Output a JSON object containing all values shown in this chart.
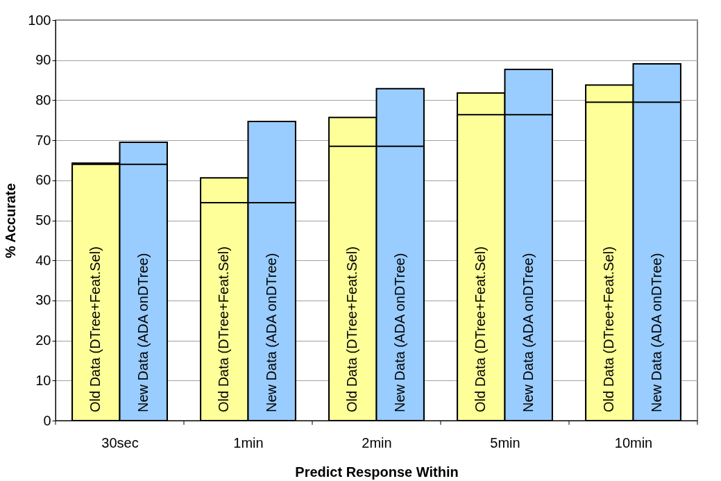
{
  "chart_data": {
    "type": "bar",
    "xlabel": "Predict Response Within",
    "ylabel": "% Accurate",
    "categories": [
      "30sec",
      "1min",
      "2min",
      "5min",
      "10min"
    ],
    "series": [
      {
        "name": "Old Data (DTree+Feat.Sel)",
        "color": "#ffff99",
        "values": [
          64.3,
          60.6,
          75.7,
          81.8,
          83.8
        ]
      },
      {
        "name": "New Data (ADA onDTree)",
        "color": "#99ccff",
        "values": [
          69.5,
          74.7,
          82.9,
          87.7,
          89.1
        ]
      },
      {
        "type": "bar",
        "values": [
          64.0,
          54.4,
          68.5,
          76.4,
          79.5
        ]
      }
    ],
    "ylim": [
      0,
      100
    ],
    "yticks": [
      0,
      10,
      20,
      30,
      40,
      50,
      60,
      70,
      80,
      90,
      100
    ],
    "grid": "y"
  }
}
